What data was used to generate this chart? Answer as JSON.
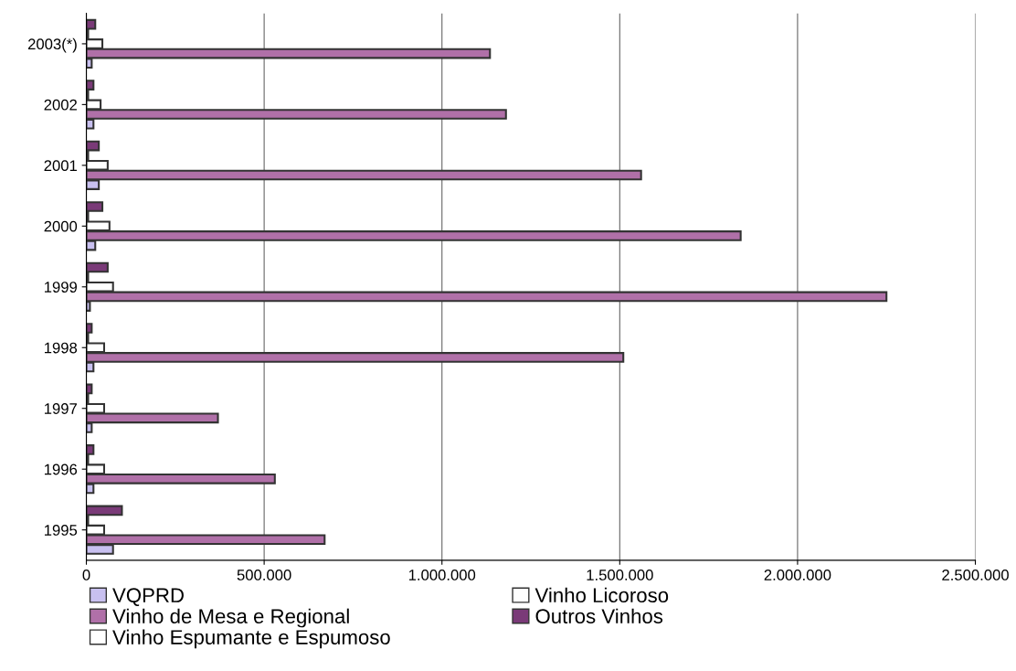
{
  "chart_data": {
    "type": "bar",
    "orientation": "horizontal",
    "categories": [
      "2003(*)",
      "2002",
      "2001",
      "2000",
      "1999",
      "1998",
      "1997",
      "1996",
      "1995"
    ],
    "series": [
      {
        "name": "VQPRD",
        "color": "#c8c0f0",
        "values": [
          15000,
          20000,
          35000,
          25000,
          10000,
          20000,
          15000,
          20000,
          75000
        ]
      },
      {
        "name": "Vinho de Mesa e Regional",
        "color": "#b070a8",
        "values": [
          1135000,
          1180000,
          1560000,
          1840000,
          2250000,
          1510000,
          370000,
          530000,
          670000
        ]
      },
      {
        "name": "Vinho Espumante e Espumoso",
        "color": "#ffffff",
        "values": [
          45000,
          40000,
          60000,
          65000,
          75000,
          50000,
          50000,
          50000,
          50000
        ]
      },
      {
        "name": "Vinho Licoroso",
        "color": "#ffffff",
        "values": [
          5000,
          5000,
          5000,
          5000,
          5000,
          5000,
          5000,
          5000,
          5000
        ]
      },
      {
        "name": "Outros Vinhos",
        "color": "#7a3a78",
        "values": [
          25000,
          20000,
          35000,
          45000,
          60000,
          15000,
          15000,
          20000,
          100000
        ]
      }
    ],
    "xlim": [
      0,
      2500000
    ],
    "xticks": [
      {
        "value": 0,
        "label": "0"
      },
      {
        "value": 500000,
        "label": "500.000"
      },
      {
        "value": 1000000,
        "label": "1.000.000"
      },
      {
        "value": 1500000,
        "label": "1.500.000"
      },
      {
        "value": 2000000,
        "label": "2.000.000"
      },
      {
        "value": 2500000,
        "label": "2.500.000"
      }
    ],
    "grid": "x",
    "legend": "bottom"
  }
}
